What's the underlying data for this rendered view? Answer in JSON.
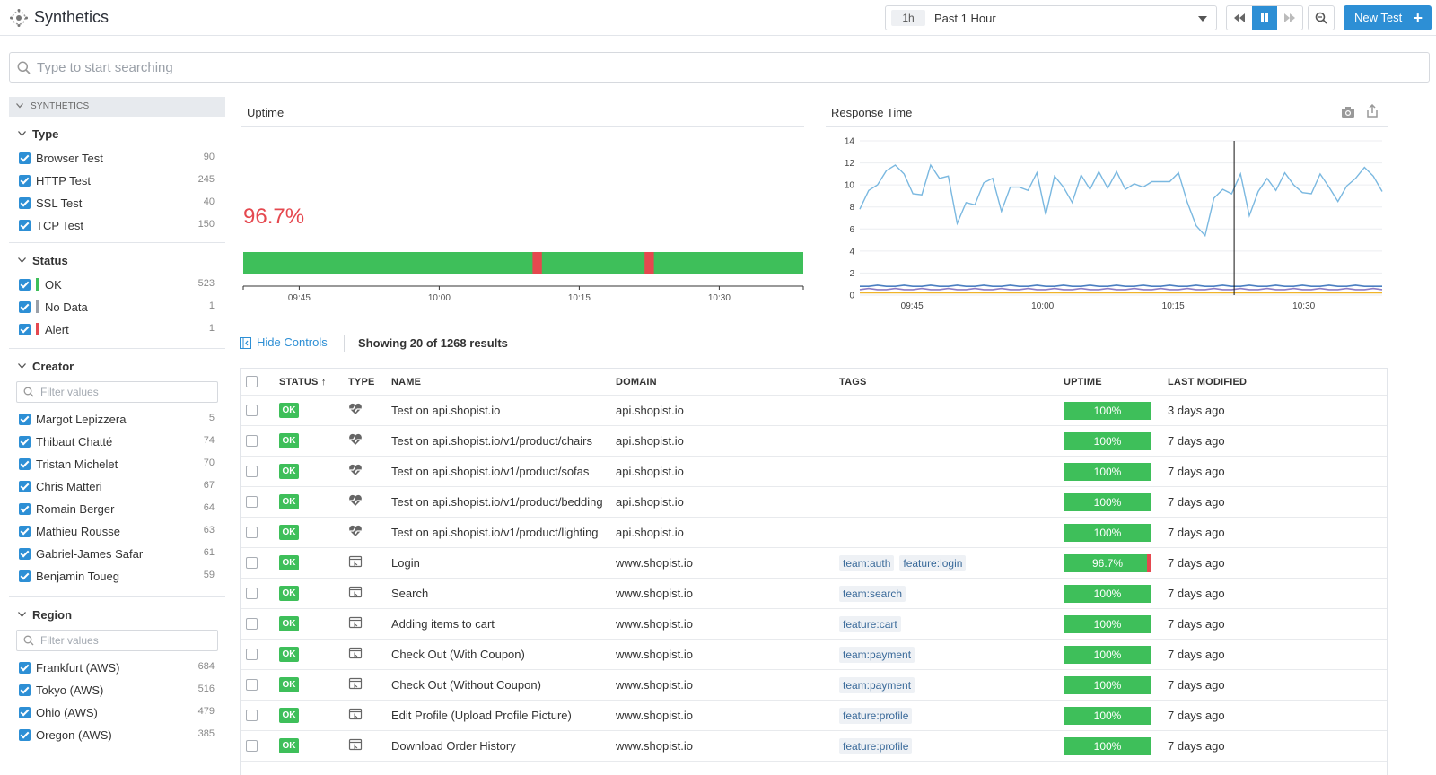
{
  "app": {
    "title": "Synthetics"
  },
  "header": {
    "time_badge": "1h",
    "time_label": "Past 1 Hour",
    "new_test_label": "New Test"
  },
  "search": {
    "placeholder": "Type to start searching"
  },
  "sidebar": {
    "section_label": "SYNTHETICS",
    "type": {
      "title": "Type",
      "items": [
        {
          "label": "Browser Test",
          "count": "90"
        },
        {
          "label": "HTTP Test",
          "count": "245"
        },
        {
          "label": "SSL Test",
          "count": "40"
        },
        {
          "label": "TCP Test",
          "count": "150"
        }
      ]
    },
    "status": {
      "title": "Status",
      "items": [
        {
          "label": "OK",
          "count": "523",
          "color": "#3ebf5a"
        },
        {
          "label": "No Data",
          "count": "1",
          "color": "#9aa0a8"
        },
        {
          "label": "Alert",
          "count": "1",
          "color": "#e5484f"
        }
      ]
    },
    "creator": {
      "title": "Creator",
      "filter_placeholder": "Filter values",
      "items": [
        {
          "label": "Margot Lepizzera",
          "count": "5"
        },
        {
          "label": "Thibaut Chatté",
          "count": "74"
        },
        {
          "label": "Tristan Michelet",
          "count": "70"
        },
        {
          "label": "Chris Matteri",
          "count": "67"
        },
        {
          "label": "Romain Berger",
          "count": "64"
        },
        {
          "label": "Mathieu Rousse",
          "count": "63"
        },
        {
          "label": "Gabriel-James Safar",
          "count": "61"
        },
        {
          "label": "Benjamin Toueg",
          "count": "59"
        }
      ]
    },
    "region": {
      "title": "Region",
      "filter_placeholder": "Filter values",
      "items": [
        {
          "label": "Frankfurt (AWS)",
          "count": "684"
        },
        {
          "label": "Tokyo (AWS)",
          "count": "516"
        },
        {
          "label": "Ohio (AWS)",
          "count": "479"
        },
        {
          "label": "Oregon (AWS)",
          "count": "385"
        }
      ]
    }
  },
  "uptime_panel": {
    "title": "Uptime",
    "value": "96.7%",
    "bar_color": "#3ebf5a",
    "alert_color": "#e5484f",
    "alerts": [
      {
        "start": "10:10",
        "end": "10:11"
      },
      {
        "start": "10:22",
        "end": "10:23"
      }
    ],
    "ticks": [
      "09:45",
      "10:00",
      "10:15",
      "10:30"
    ]
  },
  "response_panel": {
    "title": "Response Time",
    "y_ticks": [
      "14",
      "12",
      "10",
      "8",
      "6",
      "4",
      "2",
      "0"
    ],
    "x_ticks": [
      "09:45",
      "10:00",
      "10:15",
      "10:30"
    ]
  },
  "chart_data": {
    "type": "line",
    "title": "Response Time",
    "xlabel": "",
    "ylabel": "",
    "ylim": [
      0,
      14
    ],
    "x_ticks": [
      "09:45",
      "10:00",
      "10:15",
      "10:30"
    ],
    "marker_time": "10:22",
    "series": [
      {
        "color": "#7ab8e0",
        "values": [
          7.8,
          9.5,
          10,
          11.3,
          11.8,
          11,
          9.2,
          9.1,
          11.8,
          10.6,
          10.8,
          6.5,
          8.4,
          8.2,
          10.2,
          10.6,
          7.6,
          9.8,
          9.8,
          9.5,
          11.1,
          7.3,
          10.8,
          9.8,
          8.4,
          10.9,
          9.6,
          11.2,
          9.7,
          11.2,
          9.6,
          10.1,
          9.8,
          10.3,
          10.3,
          10.3,
          11.1,
          8.4,
          6.3,
          5.4,
          8.8,
          9.6,
          9.2,
          11.0,
          7.2,
          9.4,
          10.6,
          9.5,
          11.1,
          10.0,
          9.3,
          9.2,
          11.0,
          9.8,
          8.5,
          9.9,
          10.6,
          11.6,
          10.8,
          9.4
        ]
      },
      {
        "color": "#4a7fc1",
        "values": [
          0.8,
          0.8,
          0.9,
          0.8,
          0.8,
          0.9,
          0.8,
          0.8,
          0.9,
          0.8,
          0.8,
          0.9,
          0.8,
          0.8,
          0.9,
          0.8,
          0.8,
          0.9,
          0.8,
          0.8,
          0.9,
          0.8,
          0.8,
          0.9,
          0.8,
          0.8,
          0.9,
          0.8,
          0.8,
          0.9,
          0.8,
          0.8,
          0.9,
          0.8,
          0.8,
          0.9,
          0.8,
          0.8,
          0.9,
          0.8,
          0.8,
          0.9,
          0.8,
          0.8,
          0.9,
          0.8,
          0.8,
          0.9,
          0.8,
          0.8,
          0.9,
          0.8,
          0.8,
          0.9,
          0.8,
          0.8,
          0.9,
          0.8,
          0.8,
          0.8
        ]
      },
      {
        "color": "#8e7cc3",
        "values": [
          0.5,
          0.6,
          0.5,
          0.5,
          0.6,
          0.5,
          0.5,
          0.6,
          0.5,
          0.5,
          0.6,
          0.5,
          0.5,
          0.6,
          0.5,
          0.5,
          0.6,
          0.5,
          0.5,
          0.6,
          0.5,
          0.5,
          0.6,
          0.5,
          0.5,
          0.6,
          0.5,
          0.5,
          0.6,
          0.5,
          0.5,
          0.6,
          0.5,
          0.5,
          0.6,
          0.5,
          0.5,
          0.6,
          0.5,
          0.5,
          0.6,
          0.5,
          0.5,
          0.6,
          0.5,
          0.5,
          0.6,
          0.5,
          0.5,
          0.6,
          0.5,
          0.5,
          0.6,
          0.5,
          0.5,
          0.6,
          0.5,
          0.5,
          0.6,
          0.5
        ]
      },
      {
        "color": "#f0b429",
        "values": [
          0.2,
          0.2,
          0.2,
          0.2,
          0.2,
          0.2,
          0.2,
          0.2,
          0.2,
          0.2,
          0.2,
          0.2,
          0.2,
          0.2,
          0.2,
          0.2,
          0.2,
          0.2,
          0.2,
          0.2,
          0.2,
          0.2,
          0.2,
          0.2,
          0.2,
          0.2,
          0.2,
          0.2,
          0.2,
          0.2,
          0.2,
          0.2,
          0.2,
          0.2,
          0.2,
          0.2,
          0.2,
          0.2,
          0.2,
          0.2,
          0.2,
          0.2,
          0.2,
          0.2,
          0.2,
          0.2,
          0.2,
          0.2,
          0.2,
          0.2,
          0.2,
          0.2,
          0.2,
          0.2,
          0.2,
          0.2,
          0.2,
          0.2,
          0.2,
          0.2
        ]
      }
    ]
  },
  "controls": {
    "hide_label": "Hide Controls",
    "results_text": "Showing 20 of 1268 results"
  },
  "table": {
    "headers": {
      "status": "STATUS ↑",
      "type": "TYPE",
      "name": "NAME",
      "domain": "DOMAIN",
      "tags": "TAGS",
      "uptime": "UPTIME",
      "modified": "LAST MODIFIED"
    },
    "rows": [
      {
        "status": "OK",
        "type_icon": "heartbeat-icon",
        "name": "Test on api.shopist.io",
        "domain": "api.shopist.io",
        "tags": [],
        "uptime": "100%",
        "uptime_value": 100,
        "modified": "3 days ago"
      },
      {
        "status": "OK",
        "type_icon": "heartbeat-icon",
        "name": "Test on api.shopist.io/v1/product/chairs",
        "domain": "api.shopist.io",
        "tags": [],
        "uptime": "100%",
        "uptime_value": 100,
        "modified": "7 days ago"
      },
      {
        "status": "OK",
        "type_icon": "heartbeat-icon",
        "name": "Test on api.shopist.io/v1/product/sofas",
        "domain": "api.shopist.io",
        "tags": [],
        "uptime": "100%",
        "uptime_value": 100,
        "modified": "7 days ago"
      },
      {
        "status": "OK",
        "type_icon": "heartbeat-icon",
        "name": "Test on api.shopist.io/v1/product/bedding",
        "domain": "api.shopist.io",
        "tags": [],
        "uptime": "100%",
        "uptime_value": 100,
        "modified": "7 days ago"
      },
      {
        "status": "OK",
        "type_icon": "heartbeat-icon",
        "name": "Test on api.shopist.io/v1/product/lighting",
        "domain": "api.shopist.io",
        "tags": [],
        "uptime": "100%",
        "uptime_value": 100,
        "modified": "7 days ago"
      },
      {
        "status": "OK",
        "type_icon": "browser-icon",
        "name": "Login",
        "domain": "www.shopist.io",
        "tags": [
          "team:auth",
          "feature:login"
        ],
        "uptime": "96.7%",
        "uptime_value": 96.7,
        "modified": "7 days ago"
      },
      {
        "status": "OK",
        "type_icon": "browser-icon",
        "name": "Search",
        "domain": "www.shopist.io",
        "tags": [
          "team:search"
        ],
        "uptime": "100%",
        "uptime_value": 100,
        "modified": "7 days ago"
      },
      {
        "status": "OK",
        "type_icon": "browser-icon",
        "name": "Adding items to cart",
        "domain": "www.shopist.io",
        "tags": [
          "feature:cart"
        ],
        "uptime": "100%",
        "uptime_value": 100,
        "modified": "7 days ago"
      },
      {
        "status": "OK",
        "type_icon": "browser-icon",
        "name": "Check Out (With Coupon)",
        "domain": "www.shopist.io",
        "tags": [
          "team:payment"
        ],
        "uptime": "100%",
        "uptime_value": 100,
        "modified": "7 days ago"
      },
      {
        "status": "OK",
        "type_icon": "browser-icon",
        "name": "Check Out (Without Coupon)",
        "domain": "www.shopist.io",
        "tags": [
          "team:payment"
        ],
        "uptime": "100%",
        "uptime_value": 100,
        "modified": "7 days ago"
      },
      {
        "status": "OK",
        "type_icon": "browser-icon",
        "name": "Edit Profile (Upload Profile Picture)",
        "domain": "www.shopist.io",
        "tags": [
          "feature:profile"
        ],
        "uptime": "100%",
        "uptime_value": 100,
        "modified": "7 days ago"
      },
      {
        "status": "OK",
        "type_icon": "browser-icon",
        "name": "Download Order History",
        "domain": "www.shopist.io",
        "tags": [
          "feature:profile"
        ],
        "uptime": "100%",
        "uptime_value": 100,
        "modified": "7 days ago"
      }
    ]
  }
}
